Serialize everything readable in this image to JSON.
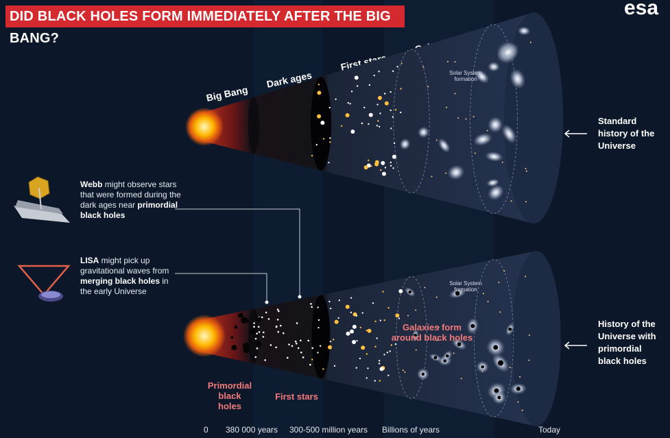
{
  "header": {
    "title": "DID BLACK HOLES FORM IMMEDIATELY AFTER THE BIG BANG?",
    "logo": "esa"
  },
  "stages": [
    "Big Bang",
    "Dark ages",
    "First stars",
    "Galaxy evolution"
  ],
  "standard": {
    "label": "Standard history of the Universe",
    "solar_system": "Solar System formation"
  },
  "primordial": {
    "label": "History of the Universe with primordial black holes",
    "solar_system": "Solar System formation",
    "black_holes": "Primordial black holes",
    "first_stars": "First stars",
    "galaxies": "Galaxies form around black holes"
  },
  "notes": {
    "webb": [
      "Webb",
      " might observe stars that were formed during the dark ages near ",
      "primordial black holes"
    ],
    "lisa": [
      "LISA",
      " might pick up gravitational waves from ",
      "merging black holes",
      " in the early Universe"
    ]
  },
  "timeline": [
    "0",
    "380 000 years",
    "300-500 million years",
    "Billions of years",
    "Today"
  ]
}
